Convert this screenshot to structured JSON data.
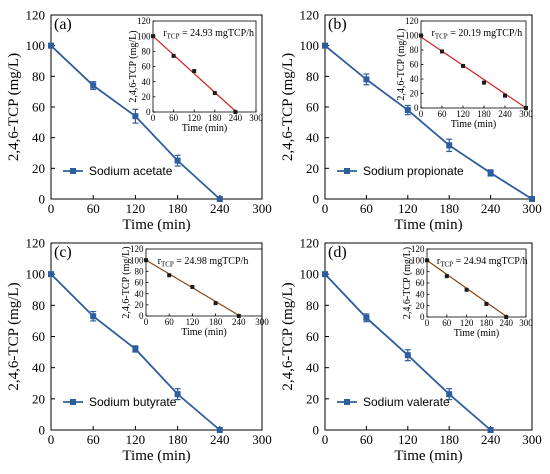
{
  "figure": {
    "colors": {
      "main_series": "#2e5d9e",
      "inset_points": "#1c1c1c",
      "fit_line_red": "#d62020",
      "fit_line_brown": "#8b4513",
      "axis": "#000000"
    }
  },
  "chart_data": [
    {
      "type": "line",
      "panel_label": "(a)",
      "xlabel": "Time (min)",
      "ylabel": "2,4,6-TCP (mg/L)",
      "xlim": [
        0,
        300
      ],
      "ylim": [
        0,
        120
      ],
      "x_ticks": [
        "0",
        "60",
        "120",
        "180",
        "240",
        "300"
      ],
      "y_ticks": [
        "0",
        "20",
        "40",
        "60",
        "80",
        "100",
        "120"
      ],
      "legend_position": "bottom-left",
      "series": [
        {
          "name": "Sodium acetate",
          "x": [
            0,
            60,
            120,
            180,
            240
          ],
          "y": [
            100,
            74,
            54,
            25,
            0
          ],
          "error": [
            0,
            2.5,
            4.5,
            3.5,
            0
          ]
        }
      ],
      "inset": {
        "type": "scatter",
        "xlabel": "Time (min)",
        "ylabel": "2,4,6-TCP (mg/L)",
        "xlim": [
          0,
          300
        ],
        "ylim": [
          0,
          120
        ],
        "x_ticks": [
          "0",
          "60",
          "120",
          "180",
          "240",
          "300"
        ],
        "y_ticks": [
          "0",
          "20",
          "40",
          "60",
          "80",
          "100",
          "120"
        ],
        "x": [
          0,
          60,
          120,
          180,
          240
        ],
        "y": [
          100,
          74,
          54,
          25,
          0
        ],
        "fit_line": {
          "x": [
            0,
            243
          ],
          "y": [
            100,
            0
          ]
        },
        "fit_color": "#d62020",
        "annotation": {
          "r": "r",
          "sub": "TCP",
          "rest": " = 24.93 mgTCP/h"
        }
      }
    },
    {
      "type": "line",
      "panel_label": "(b)",
      "xlabel": "Time (min)",
      "ylabel": "2,4,6-TCP (mg/L)",
      "xlim": [
        0,
        300
      ],
      "ylim": [
        0,
        120
      ],
      "x_ticks": [
        "0",
        "60",
        "120",
        "180",
        "240",
        "300"
      ],
      "y_ticks": [
        "0",
        "20",
        "40",
        "60",
        "80",
        "100",
        "120"
      ],
      "legend_position": "bottom-left",
      "series": [
        {
          "name": "Sodium propionate",
          "x": [
            0,
            60,
            120,
            180,
            240,
            300
          ],
          "y": [
            100,
            78,
            58,
            35,
            17,
            0
          ],
          "error": [
            0,
            3.5,
            3,
            4,
            2,
            0
          ]
        }
      ],
      "inset": {
        "type": "scatter",
        "xlabel": "Time (min)",
        "ylabel": "2,4,6-TCP (mg/L)",
        "xlim": [
          0,
          300
        ],
        "ylim": [
          0,
          120
        ],
        "x_ticks": [
          "0",
          "60",
          "120",
          "180",
          "240",
          "300"
        ],
        "y_ticks": [
          "0",
          "20",
          "40",
          "60",
          "80",
          "100",
          "120"
        ],
        "x": [
          0,
          60,
          120,
          180,
          240,
          300
        ],
        "y": [
          100,
          78,
          58,
          35,
          17,
          0
        ],
        "fit_line": {
          "x": [
            0,
            300
          ],
          "y": [
            98,
            0
          ]
        },
        "fit_color": "#d62020",
        "annotation": {
          "r": "r",
          "sub": "TCP",
          "rest": " = 20.19 mgTCP/h"
        }
      }
    },
    {
      "type": "line",
      "panel_label": "(c)",
      "xlabel": "Time (min)",
      "ylabel": "2,4,6-TCP (mg/L)",
      "xlim": [
        0,
        300
      ],
      "ylim": [
        0,
        120
      ],
      "x_ticks": [
        "0",
        "60",
        "120",
        "180",
        "240",
        "300"
      ],
      "y_ticks": [
        "0",
        "20",
        "40",
        "60",
        "80",
        "100",
        "120"
      ],
      "legend_position": "bottom-left",
      "series": [
        {
          "name": "Sodium butyrate",
          "x": [
            0,
            60,
            120,
            180,
            240
          ],
          "y": [
            100,
            73,
            52,
            23,
            0
          ],
          "error": [
            0,
            3,
            2,
            3.5,
            0
          ]
        }
      ],
      "inset": {
        "type": "scatter",
        "xlabel": "Time (min)",
        "ylabel": "2,4,6-TCP (mg/L)",
        "xlim": [
          0,
          300
        ],
        "ylim": [
          0,
          120
        ],
        "x_ticks": [
          "0",
          "60",
          "120",
          "180",
          "240",
          "300"
        ],
        "y_ticks": [
          "0",
          "20",
          "40",
          "60",
          "80",
          "100",
          "120"
        ],
        "x": [
          0,
          60,
          120,
          180,
          240
        ],
        "y": [
          100,
          73,
          52,
          23,
          0
        ],
        "fit_line": {
          "x": [
            0,
            243
          ],
          "y": [
            100,
            0
          ]
        },
        "fit_color": "#8b4513",
        "annotation": {
          "r": "r",
          "sub": "TCP",
          "rest": " = 24.98 mgTCP/h"
        }
      }
    },
    {
      "type": "line",
      "panel_label": "(d)",
      "xlabel": "Time (min)",
      "ylabel": "2,4,6-TCP (mg/L)",
      "xlim": [
        0,
        300
      ],
      "ylim": [
        0,
        120
      ],
      "x_ticks": [
        "0",
        "60",
        "120",
        "180",
        "240",
        "300"
      ],
      "y_ticks": [
        "0",
        "20",
        "40",
        "60",
        "80",
        "100",
        "120"
      ],
      "legend_position": "bottom-left",
      "series": [
        {
          "name": "Sodium valerate",
          "x": [
            0,
            60,
            120,
            180,
            240
          ],
          "y": [
            100,
            72,
            48,
            23,
            0
          ],
          "error": [
            0,
            2.5,
            3.5,
            3.5,
            0
          ]
        }
      ],
      "inset": {
        "type": "scatter",
        "xlabel": "Time (min)",
        "ylabel": "2,4,6-TCP (mg/L)",
        "xlim": [
          0,
          300
        ],
        "ylim": [
          0,
          120
        ],
        "x_ticks": [
          "0",
          "60",
          "120",
          "180",
          "240",
          "300"
        ],
        "y_ticks": [
          "0",
          "20",
          "40",
          "60",
          "80",
          "100",
          "120"
        ],
        "x": [
          0,
          60,
          120,
          180,
          240
        ],
        "y": [
          100,
          72,
          48,
          23,
          0
        ],
        "fit_line": {
          "x": [
            0,
            243
          ],
          "y": [
            100,
            0
          ]
        },
        "fit_color": "#8b4513",
        "annotation": {
          "r": "r",
          "sub": "TCP",
          "rest": " = 24.94 mgTCP/h"
        }
      }
    }
  ]
}
